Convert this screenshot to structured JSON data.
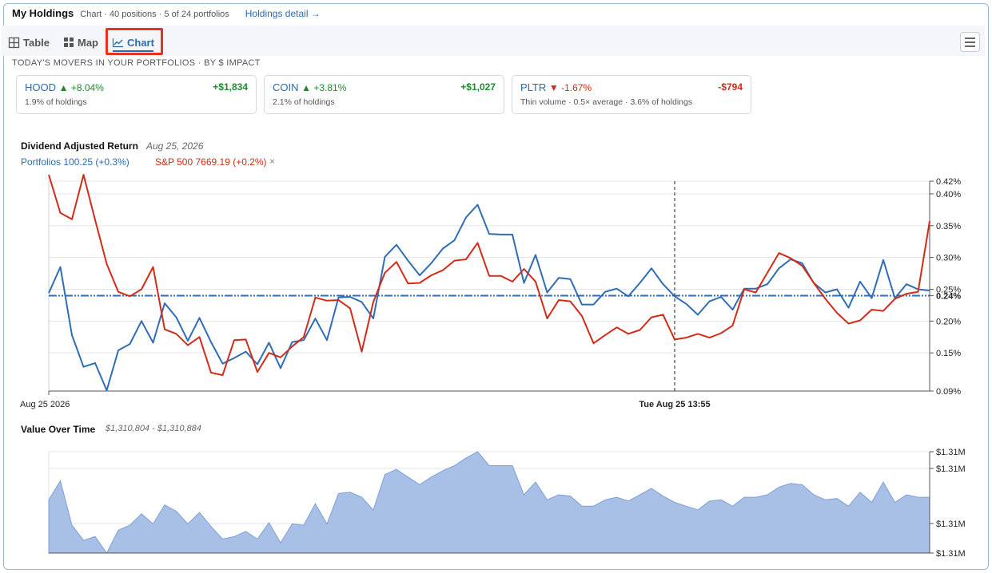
{
  "header": {
    "title": "My Holdings",
    "subtitle": "Chart · 40 positions · 5 of 24 portfolios",
    "detail_link": "Holdings detail →"
  },
  "tabs": [
    {
      "label": "Table",
      "icon": "table-icon",
      "active": false
    },
    {
      "label": "Map",
      "icon": "grid-icon",
      "active": false
    },
    {
      "label": "Chart",
      "icon": "line-chart-icon",
      "active": true
    }
  ],
  "movers": {
    "heading": "TODAY'S MOVERS IN YOUR PORTFOLIOS · BY $ IMPACT",
    "cards": [
      {
        "symbol": "HOOD",
        "change": "▲ +8.04%",
        "amount": "+$1,834",
        "note": "1.9% of holdings",
        "direction": "up"
      },
      {
        "symbol": "COIN",
        "change": "▲ +3.81%",
        "amount": "+$1,027",
        "note": "2.1% of holdings",
        "direction": "up"
      },
      {
        "symbol": "PLTR",
        "change": "▼ -1.67%",
        "amount": "-$794",
        "note": "Thin volume · 0.5× average · 3.6% of holdings",
        "direction": "down"
      }
    ]
  },
  "return_chart": {
    "title": "Dividend Adjusted Return",
    "date": "Aug 25, 2026",
    "legend_portfolios": "Portfolios 100.25 (+0.3%)",
    "legend_sp500": "S&P 500 7669.19 (+0.2%)",
    "legend_remove": "×",
    "x_label_start": "Aug 25 2026",
    "x_label_crosshair": "Tue Aug 25 13:55",
    "current_value_label": "0.24%"
  },
  "value_chart": {
    "title": "Value Over Time",
    "range": "$1,310,804 - $1,310,884"
  },
  "colors": {
    "portfolios": "#2f6db5",
    "sp500": "#d22b18",
    "area_fill": "#a9c0e6",
    "area_stroke": "#7d9fd6",
    "accent": "#2a6bb0",
    "highlight_box": "#e8321d"
  },
  "chart_data": [
    {
      "type": "line",
      "title": "Dividend Adjusted Return",
      "ylabel": "",
      "xlabel": "",
      "y_unit": "%",
      "ylim": [
        0.09,
        0.42
      ],
      "yticks": [
        0.42,
        0.4,
        0.35,
        0.3,
        0.25,
        0.24,
        0.2,
        0.15,
        0.09
      ],
      "ytick_labels": [
        "0.42%",
        "0.40%",
        "0.35%",
        "0.30%",
        "0.25%",
        "0.24%",
        "0.20%",
        "0.15%",
        "0.09%"
      ],
      "x_ticks": [
        "Aug 25 2026",
        "Tue Aug 25 13:55"
      ],
      "crosshair_index": 54,
      "baseline": 0.24,
      "grid": true,
      "series": [
        {
          "name": "Portfolios 100.25 (+0.3%)",
          "values": [
            0.244,
            0.285,
            0.178,
            0.128,
            0.134,
            0.091,
            0.154,
            0.164,
            0.2,
            0.166,
            0.228,
            0.206,
            0.169,
            0.205,
            0.167,
            0.133,
            0.142,
            0.152,
            0.132,
            0.166,
            0.126,
            0.167,
            0.17,
            0.204,
            0.17,
            0.237,
            0.238,
            0.23,
            0.204,
            0.301,
            0.32,
            0.295,
            0.272,
            0.291,
            0.314,
            0.327,
            0.363,
            0.383,
            0.337,
            0.336,
            0.336,
            0.26,
            0.304,
            0.245,
            0.268,
            0.266,
            0.226,
            0.226,
            0.246,
            0.251,
            0.239,
            0.26,
            0.283,
            0.258,
            0.239,
            0.227,
            0.21,
            0.231,
            0.238,
            0.218,
            0.251,
            0.251,
            0.258,
            0.283,
            0.297,
            0.291,
            0.26,
            0.245,
            0.25,
            0.221,
            0.262,
            0.236,
            0.296,
            0.236,
            0.258,
            0.25,
            0.248
          ]
        },
        {
          "name": "S&P 500 7669.19 (+0.2%)",
          "values": [
            0.43,
            0.37,
            0.36,
            0.43,
            0.359,
            0.29,
            0.246,
            0.239,
            0.25,
            0.285,
            0.187,
            0.18,
            0.162,
            0.175,
            0.119,
            0.115,
            0.17,
            0.171,
            0.12,
            0.15,
            0.143,
            0.16,
            0.175,
            0.237,
            0.232,
            0.233,
            0.22,
            0.152,
            0.23,
            0.276,
            0.293,
            0.259,
            0.26,
            0.272,
            0.28,
            0.295,
            0.297,
            0.323,
            0.271,
            0.271,
            0.262,
            0.282,
            0.262,
            0.204,
            0.233,
            0.231,
            0.208,
            0.165,
            0.178,
            0.19,
            0.18,
            0.186,
            0.206,
            0.21,
            0.171,
            0.174,
            0.18,
            0.174,
            0.181,
            0.193,
            0.25,
            0.245,
            0.276,
            0.307,
            0.299,
            0.287,
            0.26,
            0.235,
            0.213,
            0.196,
            0.201,
            0.218,
            0.216,
            0.235,
            0.243,
            0.246,
            0.357
          ]
        }
      ]
    },
    {
      "type": "area",
      "title": "Value Over Time",
      "ytick_labels": [
        "$1.31M",
        "$1.31M",
        "$1.31M",
        "$1.31M"
      ],
      "ylim": [
        1310804,
        1310884
      ],
      "x_count": 77,
      "series": [
        {
          "name": "",
          "values": [
            1310846,
            1310861,
            1310826,
            1310814,
            1310817,
            1310804,
            1310822,
            1310826,
            1310835,
            1310827,
            1310842,
            1310837,
            1310827,
            1310836,
            1310825,
            1310815,
            1310817,
            1310821,
            1310815,
            1310828,
            1310812,
            1310827,
            1310826,
            1310843,
            1310827,
            1310851,
            1310852,
            1310848,
            1310838,
            1310866,
            1310870,
            1310864,
            1310858,
            1310864,
            1310869,
            1310873,
            1310879,
            1310884,
            1310873,
            1310873,
            1310873,
            1310850,
            1310860,
            1310846,
            1310850,
            1310849,
            1310841,
            1310841,
            1310846,
            1310848,
            1310845,
            1310850,
            1310855,
            1310849,
            1310844,
            1310841,
            1310838,
            1310845,
            1310846,
            1310841,
            1310848,
            1310848,
            1310850,
            1310856,
            1310859,
            1310858,
            1310850,
            1310846,
            1310847,
            1310841,
            1310852,
            1310844,
            1310860,
            1310844,
            1310850,
            1310848,
            1310848
          ]
        }
      ]
    }
  ]
}
